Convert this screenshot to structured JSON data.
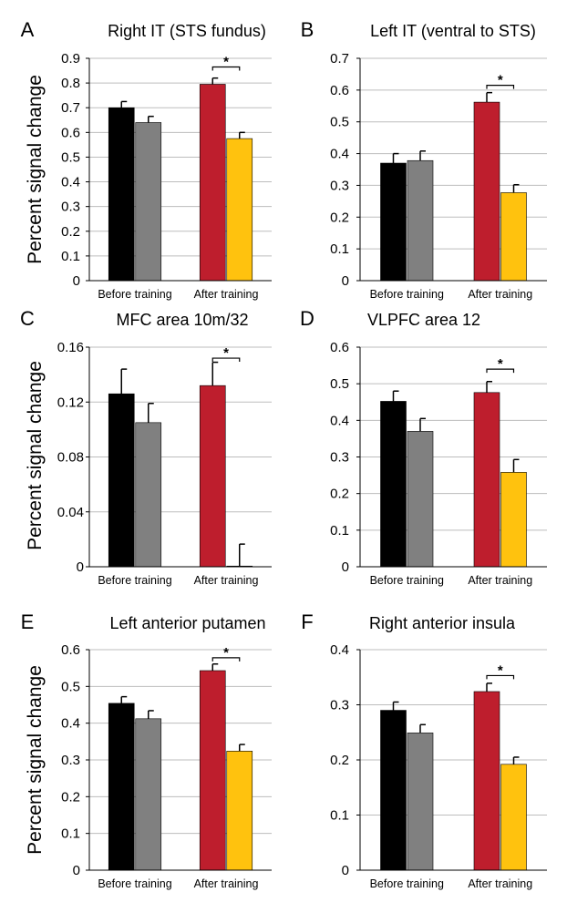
{
  "figure": {
    "ylabel": "Percent signal change",
    "colors": [
      "#000000",
      "#808080",
      "#be1e2d",
      "#ffc20e"
    ]
  },
  "chart_data": [
    {
      "panel": "A",
      "title": "Right IT (STS fundus)",
      "type": "bar",
      "categories": [
        "Before training",
        "After training"
      ],
      "ylim": [
        0,
        0.9
      ],
      "yticks": [
        "0",
        "0.1",
        "0.2",
        "0.3",
        "0.4",
        "0.5",
        "0.6",
        "0.7",
        "0.8",
        "0.9"
      ],
      "grid": true,
      "bars": [
        {
          "group": 0,
          "value": 0.7,
          "error": 0.025,
          "color": "#000000"
        },
        {
          "group": 0,
          "value": 0.64,
          "error": 0.025,
          "color": "#808080"
        },
        {
          "group": 1,
          "value": 0.795,
          "error": 0.025,
          "color": "#be1e2d"
        },
        {
          "group": 1,
          "value": 0.575,
          "error": 0.025,
          "color": "#ffc20e"
        }
      ],
      "significance": {
        "label": "*",
        "between": [
          2,
          3
        ],
        "y": 0.865
      }
    },
    {
      "panel": "B",
      "title": "Left IT (ventral to STS)",
      "type": "bar",
      "categories": [
        "Before training",
        "After training"
      ],
      "ylim": [
        0,
        0.7
      ],
      "yticks": [
        "0",
        "0.1",
        "0.2",
        "0.3",
        "0.4",
        "0.5",
        "0.6",
        "0.7"
      ],
      "grid": true,
      "bars": [
        {
          "group": 0,
          "value": 0.37,
          "error": 0.03,
          "color": "#000000"
        },
        {
          "group": 0,
          "value": 0.378,
          "error": 0.03,
          "color": "#808080"
        },
        {
          "group": 1,
          "value": 0.562,
          "error": 0.03,
          "color": "#be1e2d"
        },
        {
          "group": 1,
          "value": 0.277,
          "error": 0.025,
          "color": "#ffc20e"
        }
      ],
      "significance": {
        "label": "*",
        "between": [
          2,
          3
        ],
        "y": 0.615
      }
    },
    {
      "panel": "C",
      "title": "MFC area 10m/32",
      "type": "bar",
      "categories": [
        "Before training",
        "After training"
      ],
      "ylim": [
        0,
        0.16
      ],
      "yticks": [
        "0",
        "0.04",
        "0.08",
        "0.12",
        "0.16"
      ],
      "grid": true,
      "bars": [
        {
          "group": 0,
          "value": 0.126,
          "error": 0.018,
          "color": "#000000"
        },
        {
          "group": 0,
          "value": 0.105,
          "error": 0.014,
          "color": "#808080"
        },
        {
          "group": 1,
          "value": 0.132,
          "error": 0.017,
          "color": "#be1e2d"
        },
        {
          "group": 1,
          "value": 0.0005,
          "error": 0.016,
          "color": "#ffc20e"
        }
      ],
      "significance": {
        "label": "*",
        "between": [
          2,
          3
        ],
        "y": 0.152
      }
    },
    {
      "panel": "D",
      "title": "VLPFC area 12",
      "type": "bar",
      "categories": [
        "Before training",
        "After training"
      ],
      "ylim": [
        0,
        0.6
      ],
      "yticks": [
        "0",
        "0.1",
        "0.2",
        "0.3",
        "0.4",
        "0.5",
        "0.6"
      ],
      "grid": true,
      "bars": [
        {
          "group": 0,
          "value": 0.452,
          "error": 0.028,
          "color": "#000000"
        },
        {
          "group": 0,
          "value": 0.37,
          "error": 0.035,
          "color": "#808080"
        },
        {
          "group": 1,
          "value": 0.476,
          "error": 0.03,
          "color": "#be1e2d"
        },
        {
          "group": 1,
          "value": 0.258,
          "error": 0.035,
          "color": "#ffc20e"
        }
      ],
      "significance": {
        "label": "*",
        "between": [
          2,
          3
        ],
        "y": 0.54
      }
    },
    {
      "panel": "E",
      "title": "Left anterior putamen",
      "type": "bar",
      "categories": [
        "Before training",
        "After training"
      ],
      "ylim": [
        0,
        0.6
      ],
      "yticks": [
        "0",
        "0.1",
        "0.2",
        "0.3",
        "0.4",
        "0.5",
        "0.6"
      ],
      "grid": true,
      "bars": [
        {
          "group": 0,
          "value": 0.454,
          "error": 0.018,
          "color": "#000000"
        },
        {
          "group": 0,
          "value": 0.412,
          "error": 0.022,
          "color": "#808080"
        },
        {
          "group": 1,
          "value": 0.543,
          "error": 0.018,
          "color": "#be1e2d"
        },
        {
          "group": 1,
          "value": 0.324,
          "error": 0.018,
          "color": "#ffc20e"
        }
      ],
      "significance": {
        "label": "*",
        "between": [
          2,
          3
        ],
        "y": 0.578
      }
    },
    {
      "panel": "F",
      "title": "Right anterior insula",
      "type": "bar",
      "categories": [
        "Before training",
        "After training"
      ],
      "ylim": [
        0,
        0.4
      ],
      "yticks": [
        "0",
        "0.1",
        "0.2",
        "0.3",
        "0.4"
      ],
      "grid": true,
      "bars": [
        {
          "group": 0,
          "value": 0.29,
          "error": 0.015,
          "color": "#000000"
        },
        {
          "group": 0,
          "value": 0.249,
          "error": 0.015,
          "color": "#808080"
        },
        {
          "group": 1,
          "value": 0.324,
          "error": 0.015,
          "color": "#be1e2d"
        },
        {
          "group": 1,
          "value": 0.192,
          "error": 0.013,
          "color": "#ffc20e"
        }
      ],
      "significance": {
        "label": "*",
        "between": [
          2,
          3
        ],
        "y": 0.353
      }
    }
  ]
}
